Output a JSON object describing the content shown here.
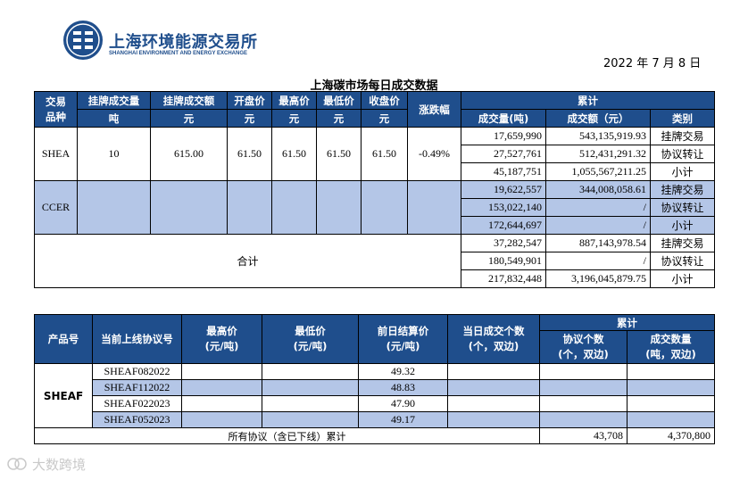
{
  "header": {
    "org_cn": "上海环境能源交易所",
    "org_en": "SHANGHAI ENVIRONMENT AND ENERGY EXCHANGE",
    "date": "2022 年 7 月 8 日",
    "title": "上海碳市场每日成交数据"
  },
  "table1": {
    "headers": {
      "product": "交易\n品种",
      "listed_volume": "挂牌成交量",
      "listed_volume_unit": "吨",
      "listed_amount": "挂牌成交额",
      "listed_amount_unit": "元",
      "open": "开盘价",
      "open_unit": "元",
      "high": "最高价",
      "high_unit": "元",
      "low": "最低价",
      "low_unit": "元",
      "close": "收盘价",
      "close_unit": "元",
      "change": "涨跌幅",
      "cumulative": "累计",
      "cum_volume": "成交量(吨)",
      "cum_amount": "成交额（元）",
      "category": "类别"
    },
    "shea": {
      "name": "SHEA",
      "listed_volume": "10",
      "listed_amount": "615.00",
      "open": "61.50",
      "high": "61.50",
      "low": "61.50",
      "close": "61.50",
      "change": "-0.49%",
      "rows": [
        {
          "volume": "17,659,990",
          "amount": "543,135,919.93",
          "category": "挂牌交易"
        },
        {
          "volume": "27,527,761",
          "amount": "512,431,291.32",
          "category": "协议转让"
        },
        {
          "volume": "45,187,751",
          "amount": "1,055,567,211.25",
          "category": "小计"
        }
      ]
    },
    "ccer": {
      "name": "CCER",
      "rows": [
        {
          "volume": "19,622,557",
          "amount": "344,008,058.61",
          "category": "挂牌交易"
        },
        {
          "volume": "153,022,140",
          "amount": "/",
          "category": "协议转让"
        },
        {
          "volume": "172,644,697",
          "amount": "/",
          "category": "小计"
        }
      ]
    },
    "total": {
      "name": "合计",
      "rows": [
        {
          "volume": "37,282,547",
          "amount": "887,143,978.54",
          "category": "挂牌交易"
        },
        {
          "volume": "180,549,901",
          "amount": "/",
          "category": "协议转让"
        },
        {
          "volume": "217,832,448",
          "amount": "3,196,045,879.75",
          "category": "小计"
        }
      ]
    }
  },
  "table2": {
    "headers": {
      "product": "产品号",
      "contract": "当前上线协议号",
      "high": "最高价\n(元/吨)",
      "low": "最低价\n(元/吨)",
      "settle": "前日结算价\n(元/吨)",
      "today_count": "当日成交个数\n(个，双边)",
      "cumulative": "累计",
      "cum_count": "协议个数\n(个，双边)",
      "cum_volume": "成交数量\n(吨，双边)"
    },
    "product": "SHEAF",
    "rows": [
      {
        "contract": "SHEAF082022",
        "settle": "49.32"
      },
      {
        "contract": "SHEAF112022",
        "settle": "48.83"
      },
      {
        "contract": "SHEAF022023",
        "settle": "47.90"
      },
      {
        "contract": "SHEAF052023",
        "settle": "49.17"
      }
    ],
    "footer": {
      "label": "所有协议（含已下线）累计",
      "cum_count": "43,708",
      "cum_volume": "4,370,800"
    }
  },
  "watermark": "大数跨境",
  "icons": {
    "logo": "exchange-logo-icon",
    "watermark": "watermark-logo-icon"
  },
  "colors": {
    "header_blue": "#1f4e8c",
    "shade": "#b4c6e7"
  }
}
